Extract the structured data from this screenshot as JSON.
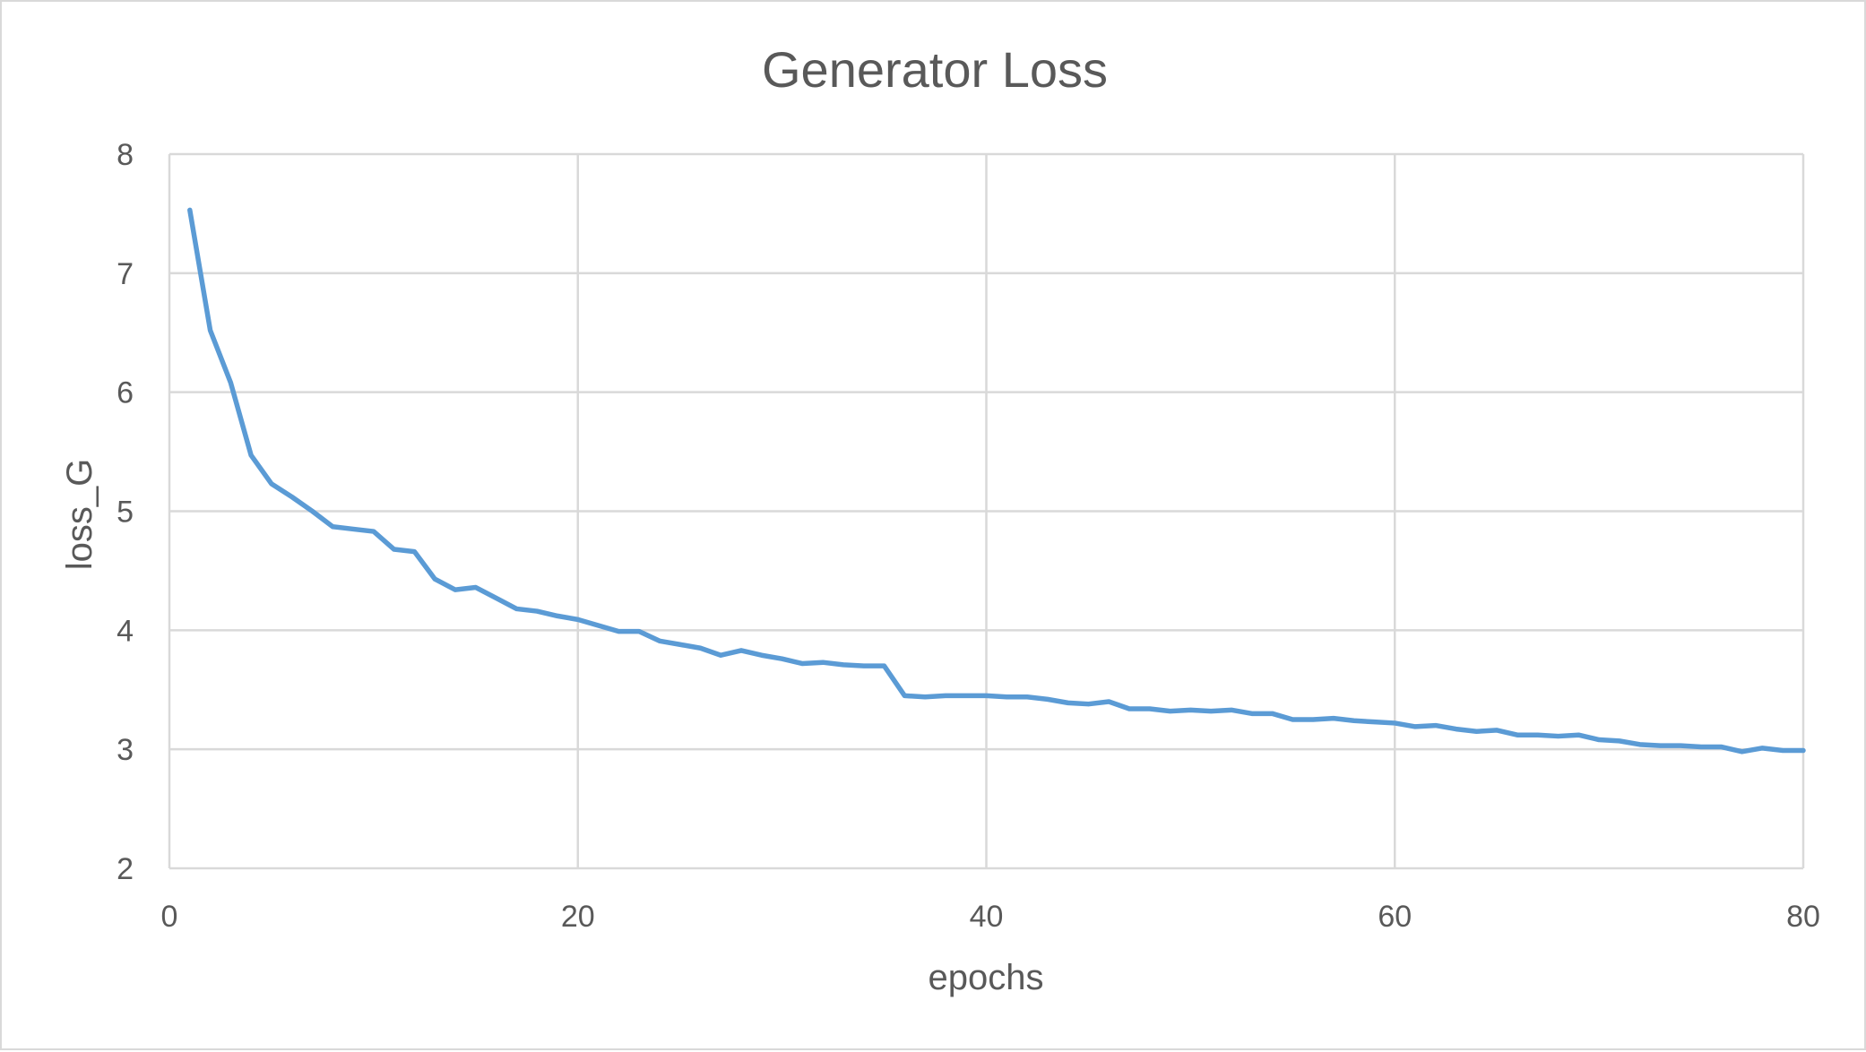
{
  "chart_data": {
    "type": "line",
    "title": "Generator Loss",
    "xlabel": "epochs",
    "ylabel": "loss_G",
    "xlim": [
      0,
      80
    ],
    "ylim": [
      2,
      8
    ],
    "xticks": [
      0,
      20,
      40,
      60,
      80
    ],
    "yticks": [
      2,
      3,
      4,
      5,
      6,
      7,
      8
    ],
    "grid": true,
    "legend": "none",
    "colors": {
      "series": "#5b9bd5",
      "grid": "#d9d9d9",
      "text": "#595959",
      "border": "#d9d9d9"
    },
    "series": [
      {
        "x": [
          1,
          2,
          3,
          4,
          5,
          6,
          7,
          8,
          9,
          10,
          11,
          12,
          13,
          14,
          15,
          16,
          17,
          18,
          19,
          20,
          21,
          22,
          23,
          24,
          25,
          26,
          27,
          28,
          29,
          30,
          31,
          32,
          33,
          34,
          35,
          36,
          37,
          38,
          39,
          40,
          41,
          42,
          43,
          44,
          45,
          46,
          47,
          48,
          49,
          50,
          51,
          52,
          53,
          54,
          55,
          56,
          57,
          58,
          59,
          60,
          61,
          62,
          63,
          64,
          65,
          66,
          67,
          68,
          69,
          70,
          71,
          72,
          73,
          74,
          75,
          76,
          77,
          78,
          79,
          80
        ],
        "y": [
          7.53,
          6.52,
          6.08,
          5.47,
          5.23,
          5.12,
          5.0,
          4.87,
          4.85,
          4.83,
          4.68,
          4.66,
          4.43,
          4.34,
          4.36,
          4.27,
          4.18,
          4.16,
          4.12,
          4.09,
          4.04,
          3.99,
          3.99,
          3.91,
          3.88,
          3.85,
          3.79,
          3.83,
          3.79,
          3.76,
          3.72,
          3.73,
          3.71,
          3.7,
          3.7,
          3.45,
          3.44,
          3.45,
          3.45,
          3.45,
          3.44,
          3.44,
          3.42,
          3.39,
          3.38,
          3.4,
          3.34,
          3.34,
          3.32,
          3.33,
          3.32,
          3.33,
          3.3,
          3.3,
          3.25,
          3.25,
          3.26,
          3.24,
          3.23,
          3.22,
          3.19,
          3.2,
          3.17,
          3.15,
          3.16,
          3.12,
          3.12,
          3.11,
          3.12,
          3.08,
          3.07,
          3.04,
          3.03,
          3.03,
          3.02,
          3.02,
          2.98,
          3.01,
          2.99,
          2.99
        ]
      }
    ]
  }
}
